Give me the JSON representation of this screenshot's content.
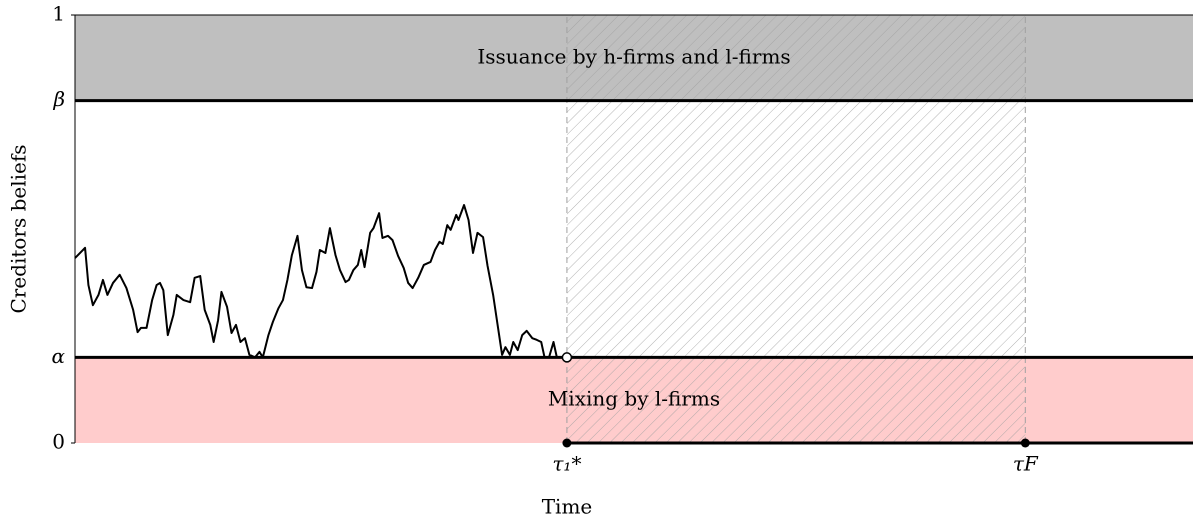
{
  "chart_data": {
    "type": "line",
    "xlabel": "Time",
    "ylabel": "Creditors beliefs",
    "xlim": [
      0,
      100
    ],
    "ylim": [
      0,
      1
    ],
    "xticks": [
      {
        "value": 44,
        "label": "τ₁*"
      },
      {
        "value": 85,
        "label": "τF"
      }
    ],
    "yticks": [
      0,
      {
        "value": 0.2,
        "label": "α"
      },
      {
        "value": 0.8,
        "label": "β"
      },
      1
    ],
    "color": "#000000",
    "annotations": [
      {
        "text": "Issuance by h-firms and l-firms",
        "color": "#bfbfbf"
      },
      {
        "text": "Mixing by l-firms",
        "color": "#ffcccc"
      }
    ],
    "x": [
      0.0,
      0.9,
      1.2,
      1.6,
      2.1,
      2.5,
      2.9,
      3.4,
      4.0,
      4.6,
      5.2,
      5.6,
      5.9,
      6.4,
      6.9,
      7.3,
      7.6,
      7.9,
      8.3,
      8.8,
      9.1,
      9.7,
      10.3,
      10.7,
      11.2,
      11.6,
      12.1,
      12.4,
      12.8,
      13.1,
      13.6,
      14.0,
      14.4,
      14.8,
      15.2,
      15.6,
      16.1,
      16.5,
      16.8,
      17.3,
      17.7,
      18.2,
      18.6,
      19.0,
      19.4,
      19.9,
      20.3,
      20.7,
      21.2,
      21.6,
      21.9,
      22.4,
      22.8,
      23.3,
      23.7,
      24.2,
      24.5,
      24.9,
      25.3,
      25.6,
      25.9,
      26.4,
      26.7,
      27.2,
      27.5,
      28.0,
      28.4,
      28.9,
      29.4,
      29.8,
      30.2,
      30.7,
      31.2,
      31.8,
      32.2,
      32.6,
      32.9,
      33.3,
      33.6,
      34.1,
      34.3,
      34.8,
      35.2,
      35.6,
      36.0,
      36.5,
      36.9,
      37.4,
      37.8,
      38.2,
      38.5,
      38.9,
      39.2,
      39.6,
      40.0,
      40.4,
      40.9,
      41.3,
      41.7,
      42.0,
      42.4,
      42.8,
      43.1,
      43.6,
      44.0
    ],
    "values": [
      0.432,
      0.456,
      0.369,
      0.322,
      0.346,
      0.381,
      0.346,
      0.374,
      0.393,
      0.362,
      0.311,
      0.259,
      0.269,
      0.269,
      0.334,
      0.369,
      0.374,
      0.357,
      0.252,
      0.299,
      0.346,
      0.334,
      0.329,
      0.386,
      0.39,
      0.311,
      0.276,
      0.236,
      0.287,
      0.353,
      0.318,
      0.257,
      0.276,
      0.236,
      0.245,
      0.206,
      0.2,
      0.213,
      0.2,
      0.252,
      0.283,
      0.315,
      0.334,
      0.381,
      0.439,
      0.484,
      0.404,
      0.364,
      0.362,
      0.4,
      0.451,
      0.444,
      0.502,
      0.439,
      0.404,
      0.376,
      0.381,
      0.404,
      0.416,
      0.451,
      0.411,
      0.491,
      0.502,
      0.537,
      0.479,
      0.484,
      0.474,
      0.437,
      0.409,
      0.374,
      0.362,
      0.386,
      0.416,
      0.423,
      0.451,
      0.47,
      0.465,
      0.509,
      0.498,
      0.533,
      0.521,
      0.556,
      0.521,
      0.444,
      0.491,
      0.481,
      0.414,
      0.346,
      0.276,
      0.206,
      0.224,
      0.206,
      0.236,
      0.217,
      0.252,
      0.262,
      0.245,
      0.241,
      0.236,
      0.2,
      0.2,
      0.236,
      0.2,
      0.2,
      0.2
    ]
  }
}
